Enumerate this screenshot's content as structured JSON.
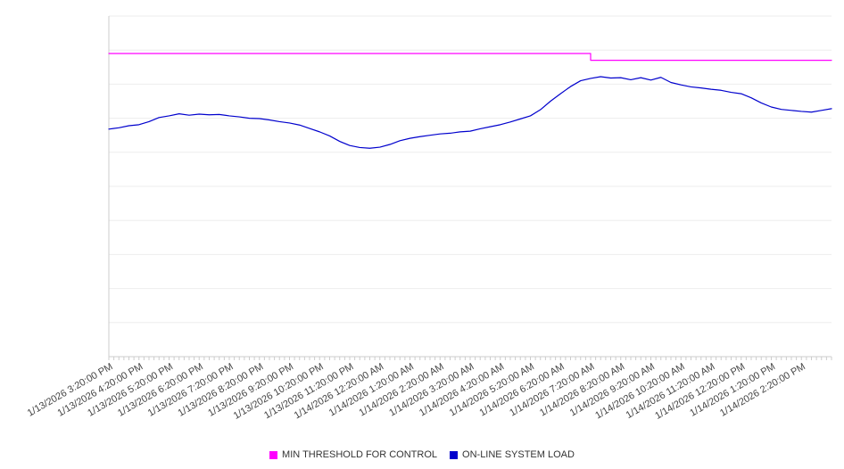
{
  "chart_data": {
    "type": "line",
    "title": "",
    "xlabel": "",
    "ylabel": "",
    "ylim": [
      0,
      100
    ],
    "y_axis_labels_visible": false,
    "grid": "horizontal",
    "legend_position": "bottom",
    "x_tick_labels": [
      "1/13/2026 3:20:00 PM",
      "1/13/2026 4:20:00 PM",
      "1/13/2026 5:20:00 PM",
      "1/13/2026 6:20:00 PM",
      "1/13/2026 7:20:00 PM",
      "1/13/2026 8:20:00 PM",
      "1/13/2026 9:20:00 PM",
      "1/13/2026 10:20:00 PM",
      "1/13/2026 11:20:00 PM",
      "1/14/2026 12:20:00 AM",
      "1/14/2026 1:20:00 AM",
      "1/14/2026 2:20:00 AM",
      "1/14/2026 3:20:00 AM",
      "1/14/2026 4:20:00 AM",
      "1/14/2026 5:20:00 AM",
      "1/14/2026 6:20:00 AM",
      "1/14/2026 7:20:00 AM",
      "1/14/2026 8:20:00 AM",
      "1/14/2026 9:20:00 AM",
      "1/14/2026 10:20:00 AM",
      "1/14/2026 11:20:00 AM",
      "1/14/2026 12:20:00 PM",
      "1/14/2026 1:20:00 PM",
      "1/14/2026 2:20:00 PM"
    ],
    "points_per_hour": 3,
    "series": [
      {
        "name": "MIN THRESHOLD FOR CONTROL",
        "color": "#ff00ff",
        "step": true,
        "values": [
          89,
          89,
          89,
          89,
          89,
          89,
          89,
          89,
          89,
          89,
          89,
          89,
          89,
          89,
          89,
          89,
          89,
          89,
          89,
          89,
          89,
          89,
          89,
          89,
          89,
          89,
          89,
          89,
          89,
          89,
          89,
          89,
          89,
          89,
          89,
          89,
          89,
          89,
          89,
          89,
          89,
          89,
          89,
          89,
          89,
          89,
          89,
          89,
          87,
          87,
          87,
          87,
          87,
          87,
          87,
          87,
          87,
          87,
          87,
          87,
          87,
          87,
          87,
          87,
          87,
          87,
          87,
          87,
          87,
          87,
          87,
          87,
          87
        ]
      },
      {
        "name": "ON-LINE SYSTEM LOAD",
        "color": "#0000cd",
        "step": false,
        "values": [
          66.8,
          67.2,
          67.8,
          68.1,
          69.0,
          70.2,
          70.7,
          71.3,
          70.9,
          71.2,
          71.0,
          71.1,
          70.7,
          70.4,
          70.0,
          69.9,
          69.5,
          69.0,
          68.6,
          68.0,
          67.0,
          66.0,
          64.8,
          63.2,
          62.0,
          61.4,
          61.2,
          61.5,
          62.3,
          63.4,
          64.1,
          64.6,
          65.0,
          65.4,
          65.6,
          66.0,
          66.2,
          66.9,
          67.5,
          68.1,
          68.9,
          69.8,
          70.7,
          72.5,
          75.0,
          77.2,
          79.3,
          81.0,
          81.7,
          82.2,
          81.8,
          81.9,
          81.3,
          81.9,
          81.2,
          82.0,
          80.5,
          79.8,
          79.2,
          78.9,
          78.5,
          78.2,
          77.6,
          77.2,
          76.0,
          74.5,
          73.3,
          72.6,
          72.3,
          72.0,
          71.8,
          72.3,
          72.8
        ]
      }
    ],
    "style": {
      "grid_color": "#ededed",
      "axis_color": "#cccccc",
      "tick_color": "#cccccc",
      "label_color": "#444444"
    }
  }
}
